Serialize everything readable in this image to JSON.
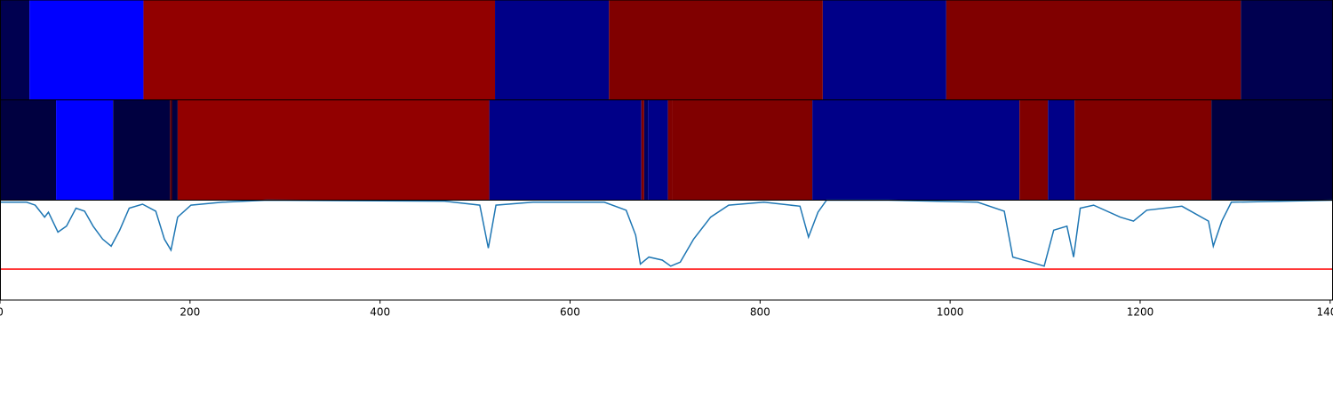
{
  "chart_data": {
    "type": "line",
    "xlim": [
      0,
      1403
    ],
    "ylim": [
      0,
      1.0
    ],
    "xticks": [
      0,
      200,
      400,
      600,
      800,
      1000,
      1200,
      1400
    ],
    "segment_rows": [
      {
        "segments": [
          {
            "start": 0,
            "end": 31,
            "color": "#000050"
          },
          {
            "start": 31,
            "end": 151,
            "color": "#0000ff"
          },
          {
            "start": 151,
            "end": 521,
            "color": "#920000"
          },
          {
            "start": 521,
            "end": 641,
            "color": "#000088"
          },
          {
            "start": 641,
            "end": 866,
            "color": "#800000"
          },
          {
            "start": 866,
            "end": 996,
            "color": "#000088"
          },
          {
            "start": 996,
            "end": 1306,
            "color": "#800000"
          },
          {
            "start": 1306,
            "end": 1403,
            "color": "#000050"
          }
        ]
      },
      {
        "segments": [
          {
            "start": 0,
            "end": 59,
            "color": "#000040"
          },
          {
            "start": 59,
            "end": 119,
            "color": "#0000ff"
          },
          {
            "start": 119,
            "end": 179,
            "color": "#000040"
          },
          {
            "start": 179,
            "end": 181,
            "color": "#600000"
          },
          {
            "start": 181,
            "end": 187,
            "color": "#000040"
          },
          {
            "start": 187,
            "end": 515,
            "color": "#920000"
          },
          {
            "start": 515,
            "end": 675,
            "color": "#000088"
          },
          {
            "start": 675,
            "end": 678,
            "color": "#800000"
          },
          {
            "start": 678,
            "end": 682,
            "color": "#000060"
          },
          {
            "start": 682,
            "end": 703,
            "color": "#000088"
          },
          {
            "start": 703,
            "end": 708,
            "color": "#800000"
          },
          {
            "start": 708,
            "end": 855,
            "color": "#800000"
          },
          {
            "start": 855,
            "end": 1073,
            "color": "#000088"
          },
          {
            "start": 1073,
            "end": 1103,
            "color": "#800000"
          },
          {
            "start": 1103,
            "end": 1131,
            "color": "#000088"
          },
          {
            "start": 1131,
            "end": 1275,
            "color": "#800000"
          },
          {
            "start": 1275,
            "end": 1403,
            "color": "#000040"
          }
        ]
      }
    ],
    "x": [
      0,
      28,
      37,
      47,
      51,
      61,
      70,
      80,
      89,
      98,
      108,
      117,
      126,
      136,
      150,
      164,
      173,
      180,
      187,
      201,
      234,
      281,
      468,
      505,
      514,
      522,
      561,
      636,
      659,
      669,
      674,
      683,
      697,
      706,
      716,
      730,
      748,
      767,
      804,
      842,
      851,
      861,
      870,
      935,
      1029,
      1057,
      1066,
      1085,
      1099,
      1109,
      1123,
      1130,
      1137,
      1151,
      1179,
      1193,
      1207,
      1244,
      1272,
      1277,
      1286,
      1296,
      1403
    ],
    "series": [
      {
        "color": "#1f77b4",
        "values": [
          0.98,
          0.98,
          0.95,
          0.83,
          0.88,
          0.68,
          0.74,
          0.92,
          0.89,
          0.74,
          0.61,
          0.54,
          0.7,
          0.92,
          0.96,
          0.89,
          0.61,
          0.5,
          0.83,
          0.95,
          0.98,
          1.0,
          0.99,
          0.95,
          0.52,
          0.95,
          0.98,
          0.98,
          0.9,
          0.65,
          0.36,
          0.43,
          0.4,
          0.34,
          0.38,
          0.61,
          0.83,
          0.95,
          0.98,
          0.94,
          0.63,
          0.88,
          1.0,
          1.0,
          0.98,
          0.89,
          0.43,
          0.38,
          0.34,
          0.7,
          0.74,
          0.43,
          0.92,
          0.95,
          0.83,
          0.79,
          0.9,
          0.94,
          0.79,
          0.54,
          0.79,
          0.98,
          1.0
        ]
      }
    ],
    "threshold": 0.31,
    "threshold_color": "#ff0000"
  }
}
